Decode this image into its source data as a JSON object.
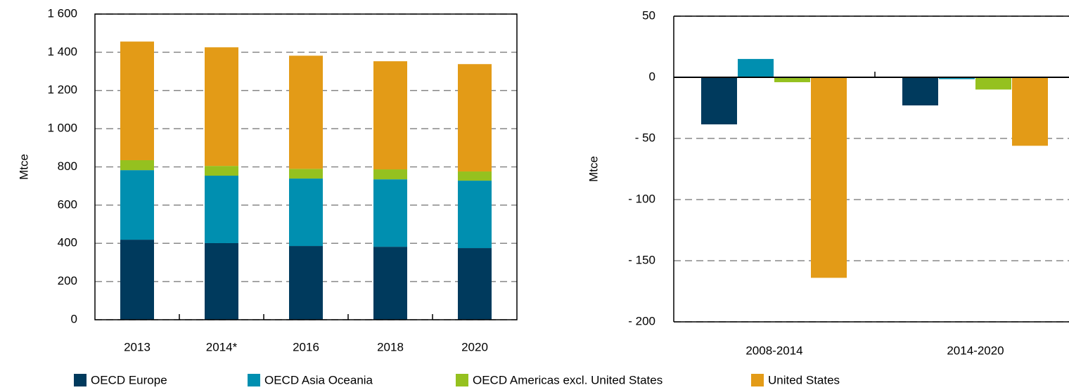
{
  "chart_data": [
    {
      "type": "bar",
      "stacked": true,
      "y_label": "Mtce",
      "categories": [
        "2013",
        "2014*",
        "2016",
        "2018",
        "2020"
      ],
      "series": [
        {
          "name": "OECD Europe",
          "color": "#003a5d",
          "values": [
            419,
            401,
            386,
            382,
            375
          ]
        },
        {
          "name": "OECD Asia Oceania",
          "color": "#008fb0",
          "values": [
            364,
            353,
            353,
            353,
            353
          ]
        },
        {
          "name": "OECD Americas excl. United States",
          "color": "#95c11f",
          "values": [
            52,
            51,
            51,
            52,
            48
          ]
        },
        {
          "name": "United States",
          "color": "#e39b17",
          "values": [
            621,
            621,
            592,
            566,
            562
          ]
        }
      ],
      "ylim": [
        0,
        1600
      ],
      "yticks": [
        0,
        200,
        400,
        600,
        800,
        {
          "value": 1000,
          "label": "1 000"
        },
        {
          "value": 1200,
          "label": "1 200"
        },
        {
          "value": 1400,
          "label": "1 400"
        },
        {
          "value": 1600,
          "label": "1 600"
        }
      ],
      "grid": true
    },
    {
      "type": "bar",
      "stacked": false,
      "y_label": "Mtce",
      "categories": [
        "2008-2014",
        "2014-2020"
      ],
      "series": [
        {
          "name": "OECD Europe",
          "color": "#003a5d",
          "values": [
            -38.5,
            -23
          ]
        },
        {
          "name": "OECD Asia Oceania",
          "color": "#008fb0",
          "values": [
            15,
            -1.5
          ]
        },
        {
          "name": "OECD Americas excl. United States",
          "color": "#95c11f",
          "values": [
            -4,
            -10
          ]
        },
        {
          "name": "United States",
          "color": "#e39b17",
          "values": [
            -164,
            -56
          ]
        }
      ],
      "ylim": [
        -200,
        50
      ],
      "yticks": [
        {
          "value": -200,
          "label": "- 200"
        },
        {
          "value": -150,
          "label": "- 150"
        },
        {
          "value": -100,
          "label": "- 100"
        },
        {
          "value": -50,
          "label": "- 50"
        },
        0,
        50
      ],
      "grid": true
    }
  ]
}
